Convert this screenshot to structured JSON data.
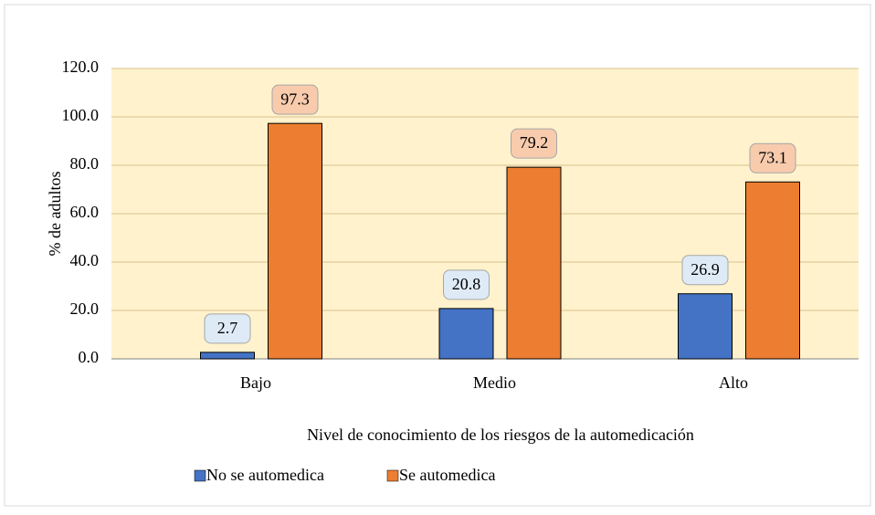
{
  "chart_data": {
    "type": "bar",
    "categories": [
      "Bajo",
      "Medio",
      "Alto"
    ],
    "series": [
      {
        "name": "No se automedica",
        "color": "#4472c4",
        "values": [
          2.7,
          20.8,
          26.9
        ]
      },
      {
        "name": "Se automedica",
        "color": "#ed7d31",
        "values": [
          97.3,
          79.2,
          73.1
        ]
      }
    ],
    "ylim": [
      0,
      120
    ],
    "yticks": [
      {
        "value": 0,
        "label": "0.0"
      },
      {
        "value": 20,
        "label": "20.0"
      },
      {
        "value": 40,
        "label": "40.0"
      },
      {
        "value": 60,
        "label": "60.0"
      },
      {
        "value": 80,
        "label": "80.0"
      },
      {
        "value": 100,
        "label": "100.0"
      },
      {
        "value": 120,
        "label": "120.0"
      }
    ],
    "y_label": "% de adultos",
    "x_label": "Nivel de conocimiento de los riesgos de la automedicación",
    "grid": true,
    "legend": "bottom"
  }
}
